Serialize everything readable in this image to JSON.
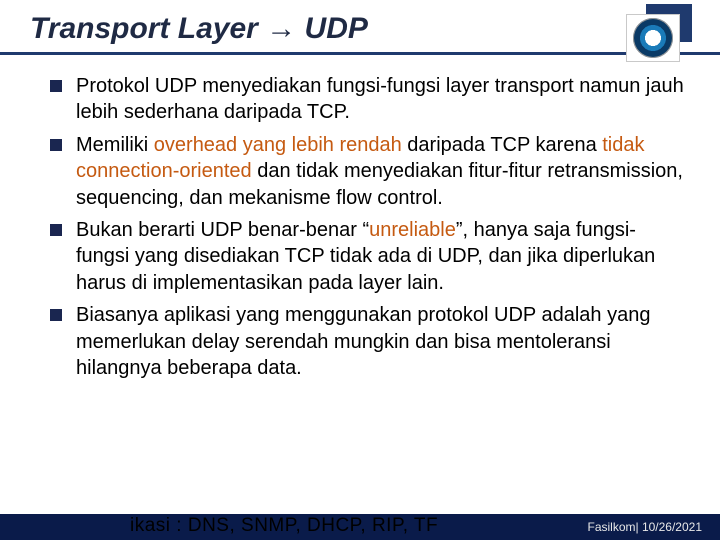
{
  "title": "Transport Layer → UDP",
  "logo": {
    "name": "university-seal"
  },
  "bullets": [
    {
      "segments": [
        {
          "text": "Protokol UDP menyediakan fungsi-fungsi layer transport namun jauh lebih sederhana daripada TCP.",
          "highlight": false
        }
      ]
    },
    {
      "segments": [
        {
          "text": "Memiliki ",
          "highlight": false
        },
        {
          "text": "overhead yang lebih rendah",
          "highlight": true
        },
        {
          "text": " daripada TCP karena ",
          "highlight": false
        },
        {
          "text": "tidak connection-oriented",
          "highlight": true
        },
        {
          "text": " dan tidak menyediakan fitur-fitur retransmission, sequencing, dan mekanisme flow control.",
          "highlight": false
        }
      ]
    },
    {
      "segments": [
        {
          "text": "Bukan berarti UDP benar-benar “",
          "highlight": false
        },
        {
          "text": "unreliable",
          "highlight": true
        },
        {
          "text": "”, hanya saja fungsi-fungsi yang disediakan TCP tidak ada di UDP, dan jika diperlukan harus di implementasikan pada layer lain.",
          "highlight": false
        }
      ]
    },
    {
      "segments": [
        {
          "text": "Biasanya aplikasi yang menggunakan protokol UDP adalah yang memerlukan delay serendah mungkin dan bisa mentoleransi hilangnya beberapa data.",
          "highlight": false
        }
      ]
    }
  ],
  "footer": {
    "overflow_text": "ikasi : DNS, SNMP, DHCP, RIP, TF",
    "right_text": "Fasilkom|  10/26/2021"
  },
  "colors": {
    "title": "#1f2a44",
    "rule": "#1f3a6e",
    "bullet_square": "#1a2650",
    "highlight": "#c55a11",
    "footer_bg": "#0a1b4a",
    "footer_text": "#e8e8e8"
  }
}
